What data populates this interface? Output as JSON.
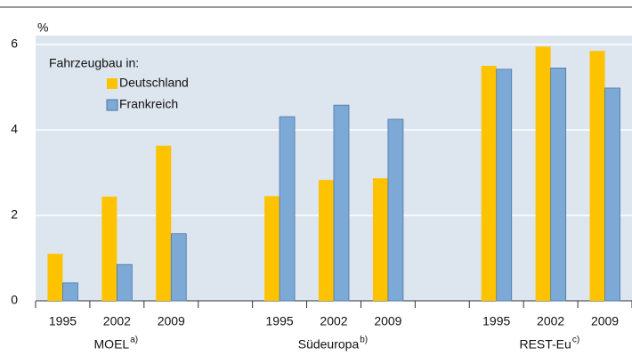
{
  "chart_data": {
    "type": "bar",
    "y_label": "%",
    "legend_title": "Fahrzeugbau in:",
    "legend": "upper left",
    "categories": [
      "1995",
      "2002",
      "2009",
      null,
      "1995",
      "2002",
      "2009",
      null,
      "1995",
      "2002",
      "2009"
    ],
    "groups": [
      {
        "label": "MOEL",
        "note": "a)"
      },
      {
        "label": "Südeuropa",
        "note": "b)"
      },
      {
        "label": "REST-Eu",
        "note": "c)"
      }
    ],
    "series": [
      {
        "name": "Deutschland",
        "color": "#fdc300",
        "values": [
          1.1,
          2.44,
          3.63,
          null,
          2.45,
          2.83,
          2.87,
          null,
          5.5,
          5.95,
          5.85
        ]
      },
      {
        "name": "Frankreich",
        "color": "#7ca9d6",
        "values": [
          0.42,
          0.85,
          1.57,
          null,
          4.31,
          4.58,
          4.25,
          null,
          5.42,
          5.45,
          4.98
        ]
      }
    ],
    "ylim": [
      0,
      6.2
    ],
    "yticks": [
      0,
      2,
      4,
      6
    ],
    "grid": true
  }
}
